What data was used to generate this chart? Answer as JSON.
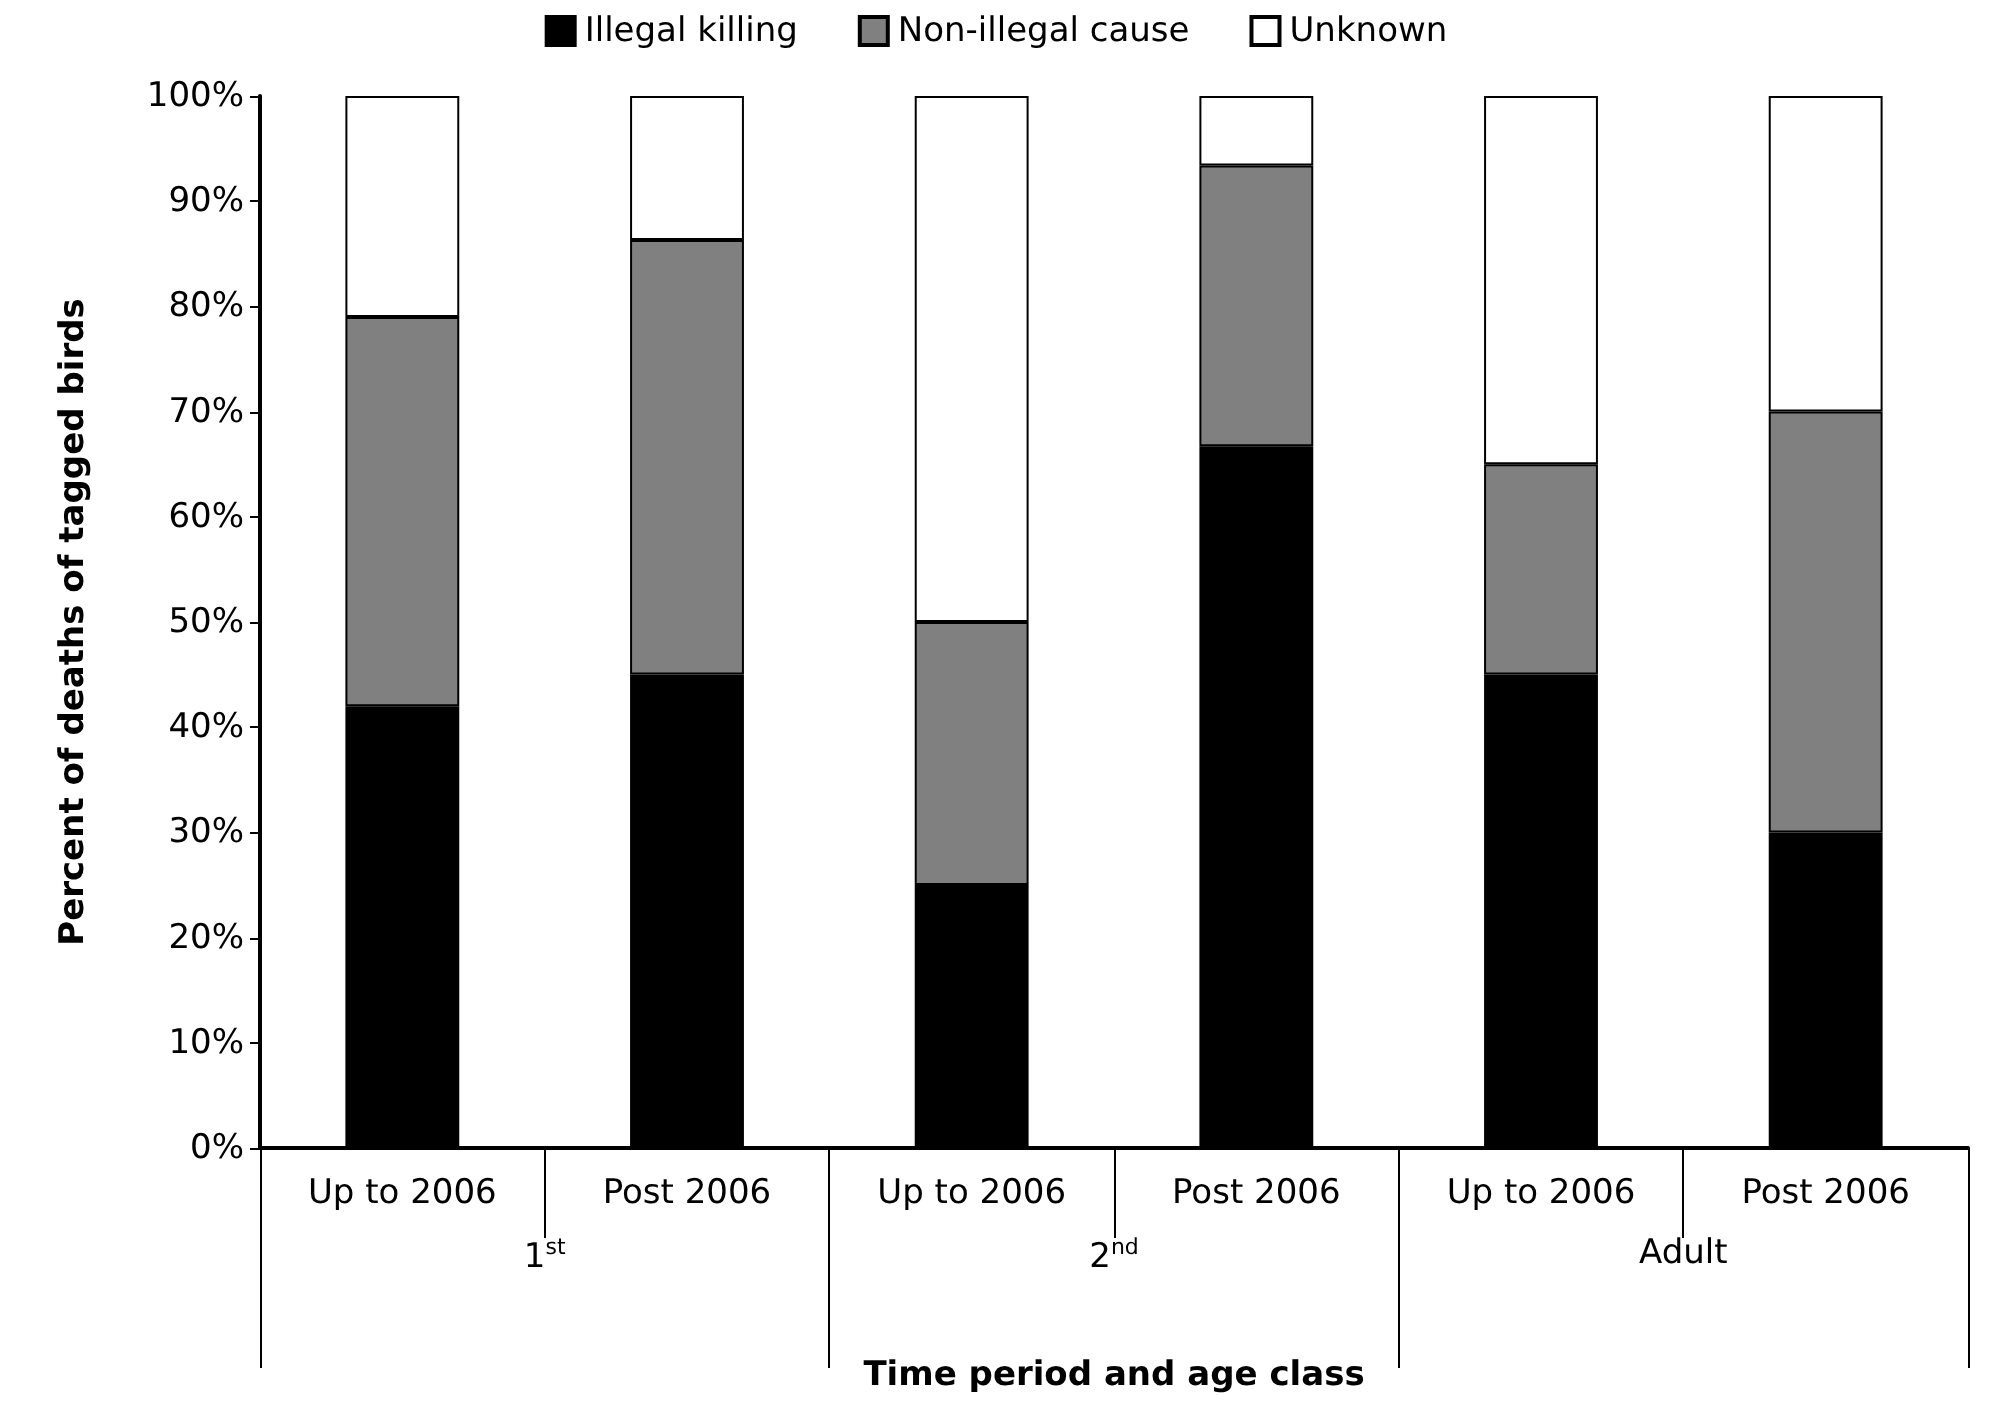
{
  "chart_data": {
    "type": "bar",
    "stacked": true,
    "categories": [
      "Up to 2006",
      "Post 2006",
      "Up to 2006",
      "Post 2006",
      "Up to 2006",
      "Post 2006"
    ],
    "series": [
      {
        "name": "Illegal killing",
        "color": "#000000",
        "values": [
          42,
          45,
          25,
          66.7,
          45,
          30
        ]
      },
      {
        "name": "Non-illegal cause",
        "color": "#808080",
        "values": [
          37,
          41.3,
          25,
          26.7,
          20,
          40
        ]
      },
      {
        "name": "Unknown",
        "color": "#ffffff",
        "values": [
          21,
          13.7,
          50,
          6.6,
          35,
          30
        ]
      }
    ],
    "annotations": [
      "1$^{st}$",
      "2$^{nd}$",
      "Adult"
    ],
    "xlabel": "Time period and age class",
    "ylabel": "Percent of deaths of tagged birds",
    "ylim": [
      0,
      100
    ],
    "yticks": [
      {
        "value": 0,
        "label": "0%"
      },
      {
        "value": 10,
        "label": "10%"
      },
      {
        "value": 20,
        "label": "20%"
      },
      {
        "value": 30,
        "label": "30%"
      },
      {
        "value": 40,
        "label": "40%"
      },
      {
        "value": 50,
        "label": "50%"
      },
      {
        "value": 60,
        "label": "60%"
      },
      {
        "value": 70,
        "label": "70%"
      },
      {
        "value": 80,
        "label": "80%"
      },
      {
        "value": 90,
        "label": "90%"
      },
      {
        "value": 100,
        "label": "100%"
      }
    ],
    "grid": false,
    "legend": "top"
  }
}
